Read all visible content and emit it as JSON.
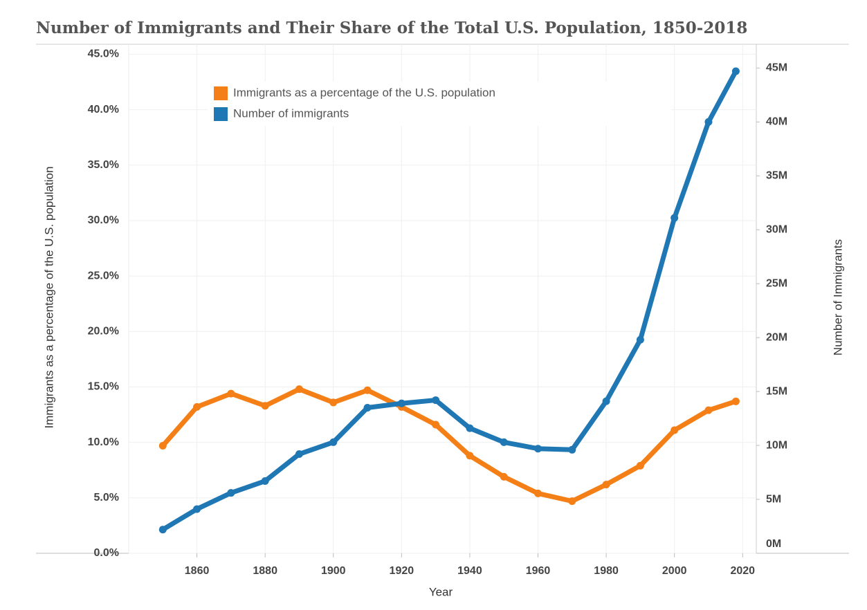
{
  "chart_data": {
    "type": "line",
    "title": "Number of Immigrants and Their Share of the Total U.S. Population, 1850-2018",
    "x_label": "Year",
    "y_label": "Immigrants as a percentage of the U.S. population",
    "y2_label": "Number of Immigrants",
    "x": [
      1850,
      1860,
      1870,
      1880,
      1890,
      1900,
      1910,
      1920,
      1930,
      1940,
      1950,
      1960,
      1970,
      1980,
      1990,
      2000,
      2010,
      2018
    ],
    "series": [
      {
        "name": "Immigrants as a percentage of the U.S. population",
        "color": "#f57f17",
        "axis": "y",
        "values": [
          9.7,
          13.2,
          14.4,
          13.3,
          14.8,
          13.6,
          14.7,
          13.2,
          11.6,
          8.8,
          6.9,
          5.4,
          4.7,
          6.2,
          7.9,
          11.1,
          12.9,
          13.7
        ]
      },
      {
        "name": "Number of immigrants",
        "color": "#1f77b4",
        "axis": "y2",
        "values": [
          2.2,
          4.1,
          5.6,
          6.7,
          9.2,
          10.3,
          13.5,
          13.9,
          14.2,
          11.6,
          10.3,
          9.7,
          9.6,
          14.1,
          19.8,
          31.1,
          40.0,
          44.7
        ]
      }
    ],
    "xlim": [
      1840,
      2024
    ],
    "xticks": [
      1860,
      1880,
      1900,
      1920,
      1940,
      1960,
      1980,
      2000,
      2020
    ],
    "ylim": [
      0,
      45.9
    ],
    "yticks": [
      {
        "value": 0,
        "label": "0.0%"
      },
      {
        "value": 5,
        "label": "5.0%"
      },
      {
        "value": 10,
        "label": "10.0%"
      },
      {
        "value": 15,
        "label": "15.0%"
      },
      {
        "value": 20,
        "label": "20.0%"
      },
      {
        "value": 25,
        "label": "25.0%"
      },
      {
        "value": 30,
        "label": "30.0%"
      },
      {
        "value": 35,
        "label": "35.0%"
      },
      {
        "value": 40,
        "label": "40.0%"
      },
      {
        "value": 45,
        "label": "45.0%"
      }
    ],
    "y2lim": [
      0,
      47.2
    ],
    "y2ticks": [
      {
        "value": 0,
        "label": "0M"
      },
      {
        "value": 5,
        "label": "5M"
      },
      {
        "value": 10,
        "label": "10M"
      },
      {
        "value": 15,
        "label": "15M"
      },
      {
        "value": 20,
        "label": "20M"
      },
      {
        "value": 25,
        "label": "25M"
      },
      {
        "value": 30,
        "label": "30M"
      },
      {
        "value": 35,
        "label": "35M"
      },
      {
        "value": 40,
        "label": "40M"
      },
      {
        "value": 45,
        "label": "45M"
      }
    ],
    "grid": true,
    "legend": "top-left"
  }
}
